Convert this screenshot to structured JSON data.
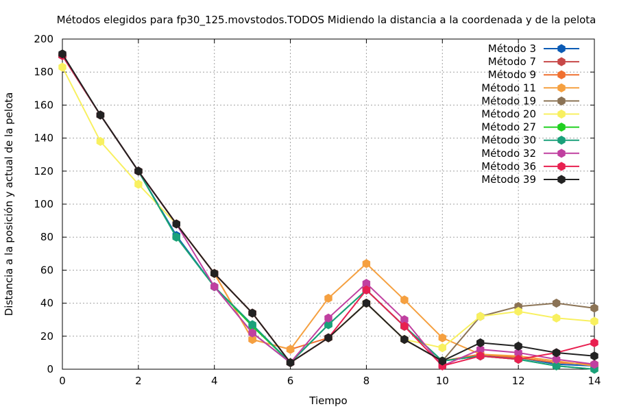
{
  "chart_data": {
    "type": "line",
    "title": "Métodos elegidos para fp30_125.movstodos.TODOS Midiendo la distancia a la coordenada y de la pelota",
    "xlabel": "Tiempo",
    "ylabel": "Distancia a la posición y actual de la pelota",
    "xlim": [
      0,
      14
    ],
    "ylim": [
      0,
      200
    ],
    "xticks": [
      0,
      2,
      4,
      6,
      8,
      10,
      12,
      14
    ],
    "yticks": [
      0,
      20,
      40,
      60,
      80,
      100,
      120,
      140,
      160,
      180,
      200
    ],
    "grid": true,
    "legend_position": "top-right",
    "x": [
      0,
      1,
      2,
      3,
      4,
      5,
      6,
      7,
      8,
      9,
      10,
      11,
      12,
      13,
      14
    ],
    "series": [
      {
        "name": "Método 3",
        "color": "#0b5bb5",
        "values": [
          190,
          154,
          120,
          81,
          50,
          22,
          4,
          27,
          48,
          26,
          5,
          8,
          7,
          3,
          2
        ]
      },
      {
        "name": "Método 7",
        "color": "#c74848",
        "values": [
          190,
          154,
          120,
          88,
          58,
          34,
          4,
          19,
          40,
          18,
          5,
          9,
          7,
          4,
          3
        ]
      },
      {
        "name": "Método 9",
        "color": "#f07030",
        "values": [
          190,
          154,
          120,
          88,
          58,
          18,
          12,
          19,
          40,
          18,
          5,
          9,
          7,
          4,
          3
        ]
      },
      {
        "name": "Método 11",
        "color": "#f5a040",
        "values": [
          190,
          154,
          120,
          88,
          58,
          18,
          12,
          43,
          64,
          42,
          19,
          9,
          8,
          5,
          2
        ]
      },
      {
        "name": "Método 19",
        "color": "#8b7355",
        "values": [
          190,
          154,
          120,
          88,
          58,
          34,
          4,
          19,
          40,
          18,
          5,
          32,
          38,
          40,
          37
        ]
      },
      {
        "name": "Método 20",
        "color": "#f8f060",
        "values": [
          183,
          138,
          112,
          88,
          58,
          34,
          4,
          19,
          40,
          18,
          13,
          32,
          35,
          31,
          29
        ]
      },
      {
        "name": "Método 27",
        "color": "#20d020",
        "values": [
          190,
          154,
          120,
          80,
          50,
          26,
          4,
          27,
          48,
          26,
          5,
          8,
          6,
          2,
          0
        ]
      },
      {
        "name": "Método 30",
        "color": "#1aa07a",
        "values": [
          190,
          154,
          120,
          80,
          50,
          27,
          4,
          27,
          48,
          26,
          5,
          8,
          6,
          2,
          0
        ]
      },
      {
        "name": "Método 32",
        "color": "#c040a0",
        "values": [
          190,
          154,
          120,
          88,
          50,
          22,
          4,
          31,
          52,
          30,
          2,
          12,
          10,
          6,
          3
        ]
      },
      {
        "name": "Método 36",
        "color": "#e82050",
        "values": [
          190,
          154,
          120,
          88,
          58,
          34,
          4,
          19,
          48,
          26,
          2,
          8,
          6,
          10,
          16
        ]
      },
      {
        "name": "Método 39",
        "color": "#222222",
        "values": [
          191,
          154,
          120,
          88,
          58,
          34,
          4,
          19,
          40,
          18,
          5,
          16,
          14,
          10,
          8
        ]
      }
    ]
  }
}
